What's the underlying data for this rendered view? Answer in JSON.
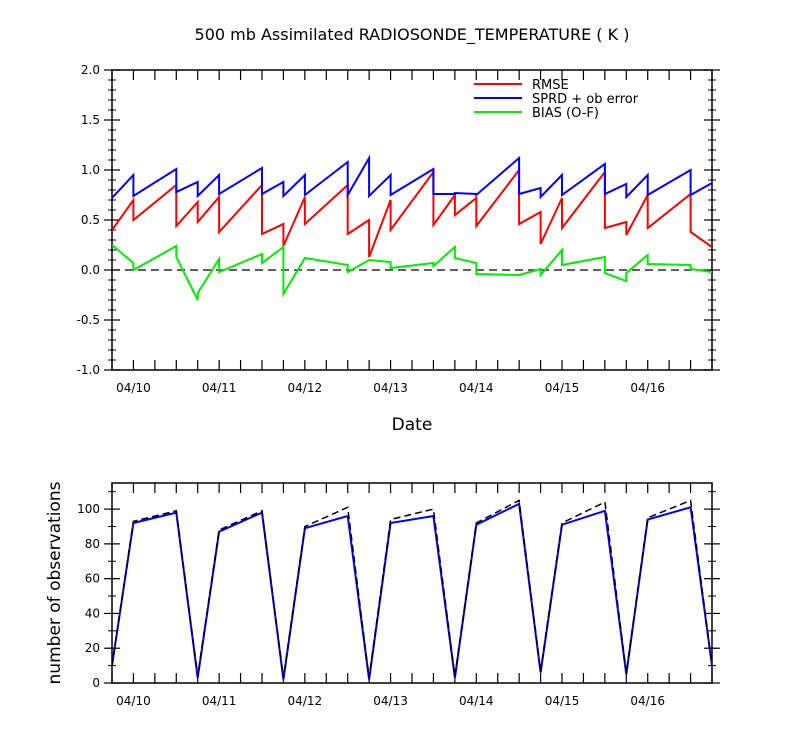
{
  "chart_data": [
    {
      "type": "line",
      "title": "500 mb Assimilated RADIOSONDE_TEMPERATURE ( K )",
      "xlabel": "Date",
      "ylabel": "",
      "ylim": [
        -1.0,
        2.0
      ],
      "yticks": [
        "-1.0",
        "-0.5",
        "0.0",
        "0.5",
        "1.0",
        "1.5",
        "2.0"
      ],
      "xlim": [
        0,
        28
      ],
      "xticks": [
        {
          "x": 1,
          "label": "04/10"
        },
        {
          "x": 5,
          "label": "04/11"
        },
        {
          "x": 9,
          "label": "04/12"
        },
        {
          "x": 13,
          "label": "04/13"
        },
        {
          "x": 17,
          "label": "04/14"
        },
        {
          "x": 21,
          "label": "04/15"
        },
        {
          "x": 25,
          "label": "04/16"
        }
      ],
      "reference_line": {
        "y": 0.0,
        "style": "dashed"
      },
      "legend_position": "top-right",
      "series": [
        {
          "name": "RMSE",
          "color": "#ff0000",
          "points": [
            [
              0,
              0.4
            ],
            [
              1,
              0.7
            ],
            [
              1,
              0.5
            ],
            [
              3,
              0.85
            ],
            [
              3,
              0.44
            ],
            [
              4,
              0.68
            ],
            [
              4,
              0.48
            ],
            [
              5,
              0.73
            ],
            [
              5,
              0.38
            ],
            [
              7,
              0.85
            ],
            [
              7,
              0.36
            ],
            [
              8,
              0.46
            ],
            [
              8,
              0.24
            ],
            [
              9,
              0.73
            ],
            [
              9,
              0.46
            ],
            [
              11,
              0.85
            ],
            [
              11,
              0.36
            ],
            [
              12,
              0.5
            ],
            [
              12,
              0.13
            ],
            [
              13,
              0.7
            ],
            [
              13,
              0.4
            ],
            [
              15,
              0.98
            ],
            [
              15,
              0.45
            ],
            [
              16,
              0.75
            ],
            [
              16,
              0.55
            ],
            [
              17,
              0.72
            ],
            [
              17,
              0.44
            ],
            [
              19,
              1.0
            ],
            [
              19,
              0.46
            ],
            [
              20,
              0.58
            ],
            [
              20,
              0.26
            ],
            [
              21,
              0.72
            ],
            [
              21,
              0.42
            ],
            [
              23,
              0.98
            ],
            [
              23,
              0.42
            ],
            [
              24,
              0.48
            ],
            [
              24,
              0.35
            ],
            [
              25,
              0.75
            ],
            [
              25,
              0.42
            ],
            [
              27,
              0.76
            ],
            [
              27,
              0.38
            ],
            [
              28,
              0.23
            ]
          ]
        },
        {
          "name": "SPRD + ob error",
          "color": "#0000ff",
          "points": [
            [
              0,
              0.72
            ],
            [
              1,
              0.95
            ],
            [
              1,
              0.74
            ],
            [
              3,
              1.01
            ],
            [
              3,
              0.78
            ],
            [
              4,
              0.88
            ],
            [
              4,
              0.74
            ],
            [
              5,
              0.95
            ],
            [
              5,
              0.76
            ],
            [
              7,
              1.02
            ],
            [
              7,
              0.76
            ],
            [
              8,
              0.88
            ],
            [
              8,
              0.74
            ],
            [
              9,
              0.95
            ],
            [
              9,
              0.75
            ],
            [
              11,
              1.08
            ],
            [
              11,
              0.75
            ],
            [
              12,
              1.12
            ],
            [
              12,
              0.74
            ],
            [
              13,
              0.95
            ],
            [
              13,
              0.75
            ],
            [
              15,
              1.01
            ],
            [
              15,
              0.76
            ],
            [
              16,
              0.76
            ],
            [
              16,
              0.77
            ],
            [
              17,
              0.76
            ],
            [
              17,
              0.75
            ],
            [
              19,
              1.12
            ],
            [
              19,
              0.76
            ],
            [
              20,
              0.82
            ],
            [
              20,
              0.73
            ],
            [
              21,
              0.95
            ],
            [
              21,
              0.75
            ],
            [
              23,
              1.06
            ],
            [
              23,
              0.76
            ],
            [
              24,
              0.86
            ],
            [
              24,
              0.73
            ],
            [
              25,
              0.95
            ],
            [
              25,
              0.75
            ],
            [
              27,
              1.0
            ],
            [
              27,
              0.75
            ],
            [
              28,
              0.87
            ]
          ]
        },
        {
          "name": "BIAS (O-F)",
          "color": "#00ee00",
          "points": [
            [
              0,
              0.25
            ],
            [
              1,
              0.07
            ],
            [
              1,
              0.0
            ],
            [
              3,
              0.24
            ],
            [
              3,
              0.13
            ],
            [
              4,
              -0.3
            ],
            [
              4,
              -0.23
            ],
            [
              5,
              0.11
            ],
            [
              5,
              -0.02
            ],
            [
              7,
              0.16
            ],
            [
              7,
              0.07
            ],
            [
              8,
              0.23
            ],
            [
              8,
              -0.24
            ],
            [
              9,
              0.12
            ],
            [
              9,
              0.12
            ],
            [
              11,
              0.05
            ],
            [
              11,
              -0.02
            ],
            [
              12,
              0.1
            ],
            [
              12,
              0.1
            ],
            [
              13,
              0.08
            ],
            [
              13,
              0.02
            ],
            [
              15,
              0.07
            ],
            [
              15,
              0.04
            ],
            [
              16,
              0.23
            ],
            [
              16,
              0.12
            ],
            [
              17,
              0.07
            ],
            [
              17,
              -0.04
            ],
            [
              19,
              -0.05
            ],
            [
              19,
              -0.05
            ],
            [
              20,
              0.01
            ],
            [
              20,
              -0.05
            ],
            [
              21,
              0.2
            ],
            [
              21,
              0.05
            ],
            [
              23,
              0.13
            ],
            [
              23,
              -0.03
            ],
            [
              24,
              -0.11
            ],
            [
              24,
              -0.03
            ],
            [
              25,
              0.15
            ],
            [
              25,
              0.06
            ],
            [
              27,
              0.05
            ],
            [
              27,
              0.01
            ],
            [
              28,
              -0.02
            ]
          ]
        }
      ]
    },
    {
      "type": "line",
      "title": "",
      "xlabel": "",
      "ylabel": "number of observations",
      "ylim": [
        0,
        115
      ],
      "yticks": [
        "0",
        "20",
        "40",
        "60",
        "80",
        "100"
      ],
      "xlim": [
        0,
        28
      ],
      "xticks": [
        {
          "x": 1,
          "label": "04/10"
        },
        {
          "x": 5,
          "label": "04/11"
        },
        {
          "x": 9,
          "label": "04/12"
        },
        {
          "x": 13,
          "label": "04/13"
        },
        {
          "x": 17,
          "label": "04/14"
        },
        {
          "x": 21,
          "label": "04/15"
        },
        {
          "x": 25,
          "label": "04/16"
        }
      ],
      "series": [
        {
          "color": "#0000ff",
          "style": "solid",
          "points": [
            [
              0,
              10
            ],
            [
              1,
              92
            ],
            [
              3,
              98
            ],
            [
              4,
              3
            ],
            [
              5,
              87
            ],
            [
              7,
              98
            ],
            [
              8,
              2
            ],
            [
              9,
              89
            ],
            [
              11,
              96
            ],
            [
              12,
              2
            ],
            [
              13,
              92
            ],
            [
              15,
              96
            ],
            [
              16,
              3
            ],
            [
              17,
              91
            ],
            [
              19,
              103
            ],
            [
              20,
              6
            ],
            [
              21,
              91
            ],
            [
              23,
              99
            ],
            [
              24,
              5
            ],
            [
              25,
              94
            ],
            [
              27,
              101
            ],
            [
              28,
              10
            ]
          ]
        },
        {
          "color": "#000000",
          "style": "dashed",
          "points": [
            [
              0,
              10
            ],
            [
              1,
              93
            ],
            [
              3,
              99
            ],
            [
              4,
              4
            ],
            [
              5,
              88
            ],
            [
              7,
              99
            ],
            [
              8,
              3
            ],
            [
              9,
              90
            ],
            [
              11,
              101
            ],
            [
              12,
              3
            ],
            [
              13,
              94
            ],
            [
              15,
              100
            ],
            [
              16,
              4
            ],
            [
              17,
              92
            ],
            [
              19,
              105
            ],
            [
              20,
              7
            ],
            [
              21,
              92
            ],
            [
              23,
              104
            ],
            [
              24,
              6
            ],
            [
              25,
              95
            ],
            [
              27,
              105
            ],
            [
              28,
              10
            ]
          ]
        }
      ]
    }
  ]
}
